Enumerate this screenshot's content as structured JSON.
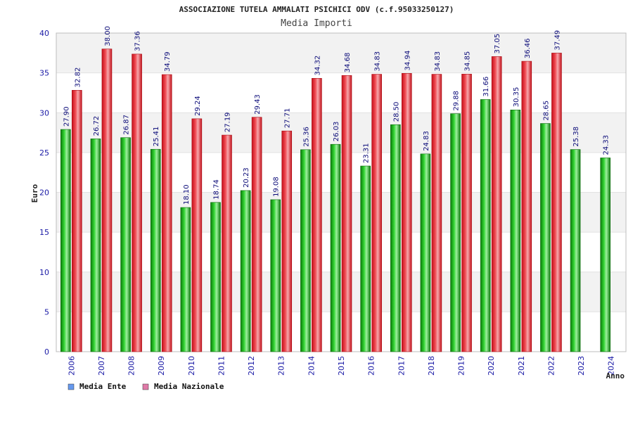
{
  "chart_data": {
    "type": "bar",
    "title": "ASSOCIAZIONE TUTELA AMMALATI PSICHICI ODV (c.f.95033250127)",
    "subtitle": "Media Importi",
    "xlabel": "Anno",
    "ylabel": "Euro",
    "ylim": [
      0,
      40
    ],
    "yticks": [
      "0",
      "5",
      "10",
      "15",
      "20",
      "25",
      "30",
      "35",
      "40"
    ],
    "categories": [
      "2006",
      "2007",
      "2008",
      "2009",
      "2010",
      "2011",
      "2012",
      "2013",
      "2014",
      "2015",
      "2016",
      "2017",
      "2018",
      "2019",
      "2020",
      "2021",
      "2022",
      "2023",
      "2024"
    ],
    "series": [
      {
        "name": "Media Ente",
        "color": "#1db51d",
        "legend_color": "#6699ee",
        "values": [
          27.9,
          26.72,
          26.87,
          25.41,
          18.1,
          18.74,
          20.23,
          19.08,
          25.36,
          26.03,
          23.31,
          28.5,
          24.83,
          29.88,
          31.66,
          30.35,
          28.65,
          25.38,
          24.33
        ],
        "labels": [
          "27.90",
          "26.72",
          "26.87",
          "25.41",
          "18.10",
          "18.74",
          "20.23",
          "19.08",
          "25.36",
          "26.03",
          "23.31",
          "28.50",
          "24.83",
          "29.88",
          "31.66",
          "30.35",
          "28.65",
          "25.38",
          "24.33"
        ]
      },
      {
        "name": "Media Nazionale",
        "color": "#e8323c",
        "legend_color": "#e07aa8",
        "values": [
          32.82,
          38.0,
          37.36,
          34.79,
          29.24,
          27.19,
          29.43,
          27.71,
          34.32,
          34.68,
          34.83,
          34.94,
          34.83,
          34.85,
          37.05,
          36.46,
          37.49,
          null,
          null
        ],
        "labels": [
          "32.82",
          "38.00",
          "37.36",
          "34.79",
          "29.24",
          "27.19",
          "29.43",
          "27.71",
          "34.32",
          "34.68",
          "34.83",
          "34.94",
          "34.83",
          "34.85",
          "37.05",
          "36.46",
          "37.49",
          "",
          ""
        ]
      }
    ],
    "grid": true,
    "legend_position": "bottom-left"
  }
}
